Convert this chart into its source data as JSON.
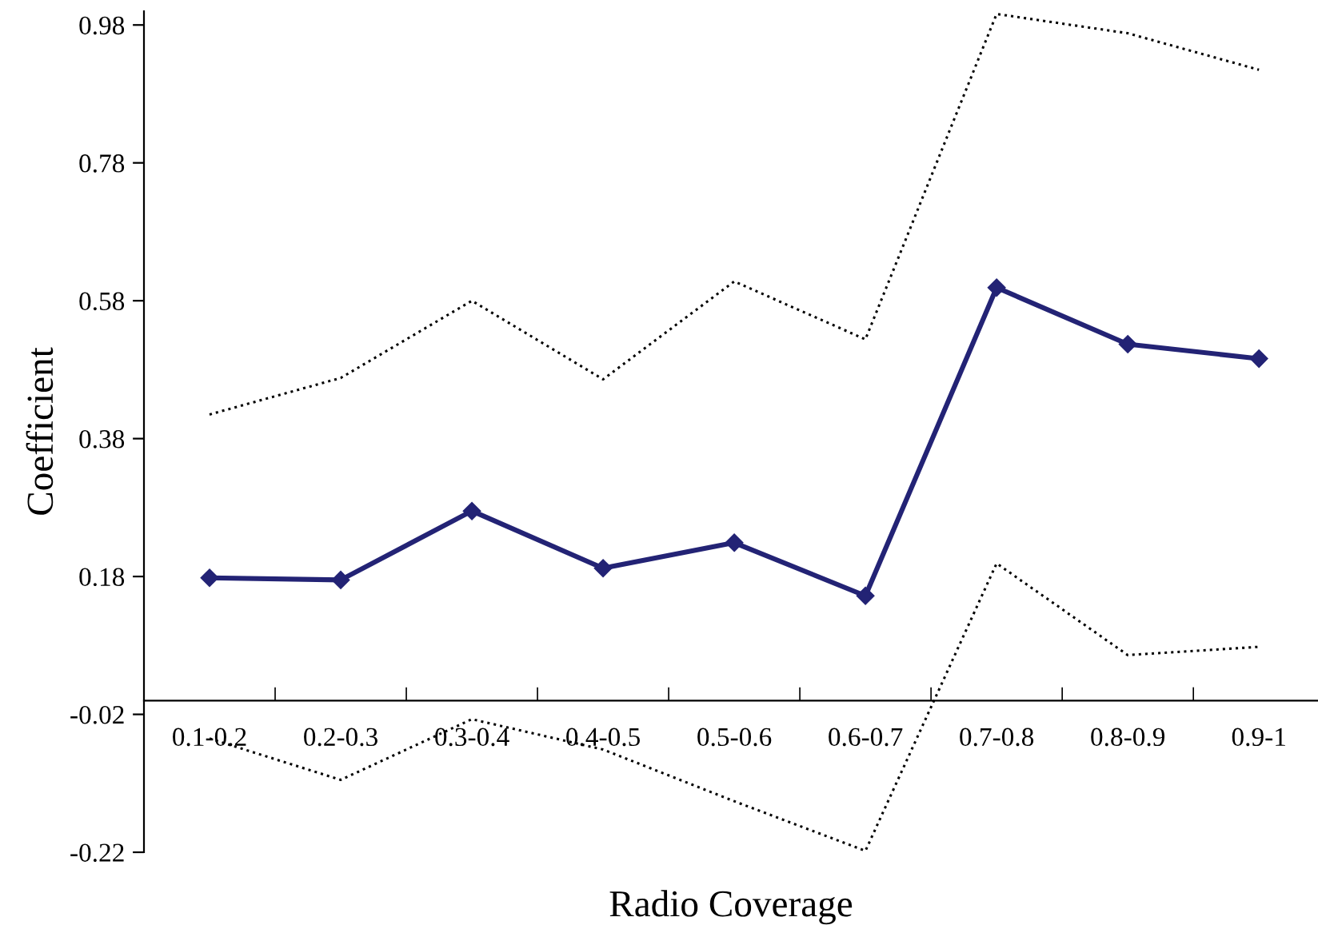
{
  "chart_data": {
    "type": "line",
    "xlabel": "Radio Coverage",
    "ylabel": "Coefficient",
    "categories": [
      "0.1-0.2",
      "0.2-0.3",
      "0.3-0.4",
      "0.4-0.5",
      "0.5-0.6",
      "0.6-0.7",
      "0.7-0.8",
      "0.8-0.9",
      "0.9-1"
    ],
    "series": [
      {
        "color": "#232375",
        "marker": "diamond",
        "line_style": "solid",
        "values": [
          0.178,
          0.175,
          0.275,
          0.192,
          0.229,
          0.152,
          0.599,
          0.517,
          0.496
        ]
      },
      {
        "color": "#000000",
        "marker": "none",
        "line_style": "dotted",
        "values": [
          0.415,
          0.468,
          0.58,
          0.466,
          0.608,
          0.524,
          0.996,
          0.968,
          0.915
        ]
      },
      {
        "color": "#000000",
        "marker": "none",
        "line_style": "dotted",
        "values": [
          -0.055,
          -0.115,
          -0.027,
          -0.071,
          -0.146,
          -0.218,
          0.199,
          0.066,
          0.078
        ]
      }
    ],
    "ylim": [
      -0.22,
      1.0
    ],
    "yticks": [
      {
        "value": -0.22,
        "label": "-0.22"
      },
      {
        "value": -0.02,
        "label": "-0.02"
      },
      0.18,
      0.38,
      0.58,
      0.78,
      0.98
    ],
    "grid": false,
    "legend": false
  }
}
